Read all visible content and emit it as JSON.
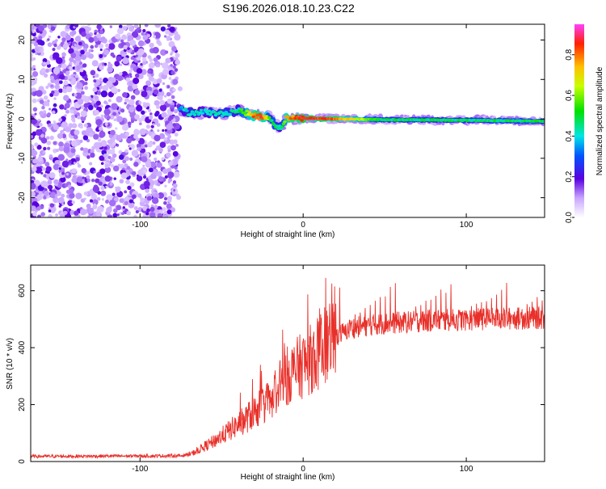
{
  "title": "S196.2026.018.10.23.C22",
  "chart_data": [
    {
      "type": "heatmap",
      "xlabel": "Height of straight line (km)",
      "ylabel": "Frequency (Hz)",
      "xlim": [
        -167,
        148
      ],
      "ylim": [
        -25,
        24
      ],
      "xticks": [
        -100,
        0,
        100
      ],
      "xtick_labels": [
        "-100",
        "0",
        "100"
      ],
      "yticks": [
        -20,
        -10,
        0,
        10,
        20
      ],
      "ytick_labels": [
        "-20",
        "-10",
        "0",
        "10",
        "20"
      ],
      "noise_region_km": [
        -167,
        -77
      ],
      "trace": {
        "km": [
          -77,
          -70,
          -60,
          -50,
          -40,
          -30,
          -25,
          -20,
          -17,
          -14,
          -10,
          -5,
          0,
          20,
          50,
          80,
          110,
          148
        ],
        "freq_hz": [
          3,
          1.5,
          1.8,
          1.2,
          2.2,
          0.8,
          0.5,
          0.2,
          -1.8,
          -2.3,
          0.3,
          0.3,
          0.2,
          0.0,
          -0.2,
          -0.3,
          -0.4,
          -0.6
        ],
        "amplitude": [
          0.35,
          0.45,
          0.4,
          0.45,
          0.45,
          0.85,
          0.9,
          0.5,
          0.55,
          0.4,
          0.8,
          0.85,
          0.93,
          0.85,
          0.5,
          0.5,
          0.5,
          0.5
        ]
      },
      "colorbar": {
        "label": "Normalized spectral amplitude",
        "range": [
          0,
          0.95
        ],
        "ticks": [
          0.0,
          0.2,
          0.4,
          0.6,
          0.8
        ],
        "tick_labels": [
          "0.0",
          "0.2",
          "0.4",
          "0.6",
          "0.8"
        ]
      }
    },
    {
      "type": "line",
      "xlabel": "Height of straight line (km)",
      "ylabel": "SNR (10 * v/v)",
      "xlim": [
        -167,
        148
      ],
      "ylim": [
        0,
        690
      ],
      "xticks": [
        -100,
        0,
        100
      ],
      "xtick_labels": [
        "-100",
        "0",
        "100"
      ],
      "yticks": [
        0,
        200,
        400,
        600
      ],
      "ytick_labels": [
        "0",
        "200",
        "400",
        "600"
      ],
      "color": "#e8302a",
      "baseline": {
        "km": [
          -167,
          -75,
          -68,
          -55,
          -45,
          -35,
          -20,
          -10,
          0,
          10,
          20,
          30,
          50,
          80,
          110,
          148
        ],
        "snr": [
          18,
          20,
          28,
          70,
          110,
          150,
          220,
          300,
          340,
          380,
          440,
          470,
          485,
          495,
          500,
          505
        ]
      },
      "spike_spacing_km": 3.1,
      "spike_start_km": 10,
      "spike_peak_snr": 640
    }
  ]
}
